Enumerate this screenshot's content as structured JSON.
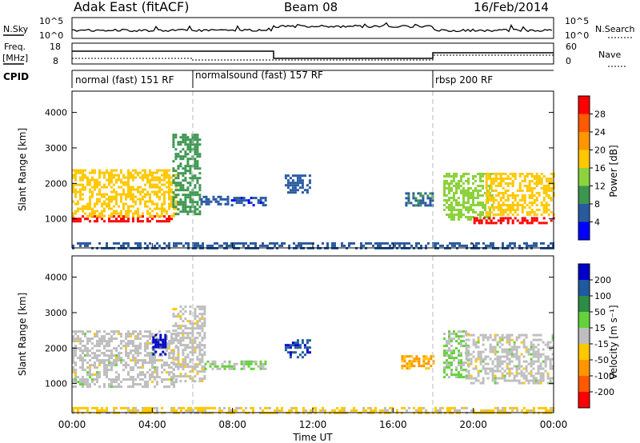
{
  "header": {
    "station": "Adak East (fitACF)",
    "beam": "Beam 08",
    "date": "16/Feb/2014"
  },
  "strips": {
    "nsky_label": "N.Sky",
    "nsearch_label": "N.Search",
    "noise_ticks": [
      "10^5",
      "10^0"
    ],
    "freq_label": "Freq.",
    "freq_unit": "[MHz]",
    "freq_ticks": [
      "18",
      "8"
    ],
    "nave_label": "Nave",
    "nave_ticks": [
      "60",
      "0"
    ],
    "cpid_label": "CPID"
  },
  "cpid_segments": [
    {
      "label": "normal (fast) 151 RF",
      "start_h": 0,
      "end_h": 6
    },
    {
      "label": "normalsound (fast) 157 RF",
      "start_h": 6,
      "end_h": 18
    },
    {
      "label": "rbsp 200 RF",
      "start_h": 18,
      "end_h": 24
    }
  ],
  "axes": {
    "ylabel": "Slant Range [km]",
    "xlabel": "Time UT",
    "x_ticks": [
      "00:00",
      "04:00",
      "08:00",
      "12:00",
      "16:00",
      "20:00",
      "00:00"
    ],
    "y_ticks": [
      "1000",
      "2000",
      "3000",
      "4000"
    ]
  },
  "colorbars": {
    "power": {
      "label": "Power [dB]",
      "ticks": [
        "28",
        "24",
        "20",
        "16",
        "12",
        "8",
        "4"
      ],
      "colors": [
        "#ff0000",
        "#ff5a00",
        "#ff9600",
        "#ffc800",
        "#8cd23c",
        "#3c9650",
        "#285aa0",
        "#0000ff"
      ]
    },
    "velocity": {
      "label": "Velocity [m s⁻¹]",
      "ticks": [
        "200",
        "100",
        "50",
        "15",
        "-15",
        "-50",
        "-100",
        "-200"
      ],
      "colors": [
        "#0000c8",
        "#1e5aa0",
        "#2d8c46",
        "#64d23c",
        "#bebebe",
        "#ffc800",
        "#ff9600",
        "#ff5a00",
        "#ff0000"
      ]
    }
  },
  "chart_data": [
    {
      "type": "heatmap",
      "title": "Power",
      "x_range_hours": [
        0,
        24
      ],
      "y_range_km": [
        180,
        4600
      ],
      "colorbar": "power",
      "clim": [
        0,
        32
      ],
      "regions": [
        {
          "t": [
            0,
            5.0
          ],
          "r": [
            900,
            1100
          ],
          "v": 30
        },
        {
          "t": [
            0,
            5.2
          ],
          "r": [
            1100,
            2400
          ],
          "v": 18
        },
        {
          "t": [
            5.0,
            6.4
          ],
          "r": [
            1100,
            3400
          ],
          "v": 10
        },
        {
          "t": [
            6.4,
            7.8
          ],
          "r": [
            1400,
            1650
          ],
          "v": 6
        },
        {
          "t": [
            7.8,
            9.6
          ],
          "r": [
            1380,
            1620
          ],
          "v": 5
        },
        {
          "t": [
            10.6,
            11.8
          ],
          "r": [
            1750,
            2250
          ],
          "v": 6
        },
        {
          "t": [
            16.6,
            18.0
          ],
          "r": [
            1400,
            1750
          ],
          "v": 7
        },
        {
          "t": [
            18.5,
            21.0
          ],
          "r": [
            1000,
            2300
          ],
          "v": 14
        },
        {
          "t": [
            20.0,
            24
          ],
          "r": [
            850,
            1050
          ],
          "v": 30
        },
        {
          "t": [
            20.6,
            24
          ],
          "r": [
            1100,
            2300
          ],
          "v": 18
        },
        {
          "t": [
            0,
            24
          ],
          "r": [
            180,
            340
          ],
          "v": 6
        }
      ]
    },
    {
      "type": "heatmap",
      "title": "Velocity",
      "x_range_hours": [
        0,
        24
      ],
      "y_range_km": [
        180,
        4600
      ],
      "colorbar": "velocity",
      "clim": [
        -250,
        250
      ],
      "regions": [
        {
          "t": [
            0,
            5.2
          ],
          "r": [
            900,
            2500
          ],
          "v": 0
        },
        {
          "t": [
            5.0,
            6.6
          ],
          "r": [
            1100,
            3200
          ],
          "v": -5
        },
        {
          "t": [
            4.0,
            4.6
          ],
          "r": [
            1800,
            2400
          ],
          "v": 220
        },
        {
          "t": [
            6.6,
            9.6
          ],
          "r": [
            1400,
            1650
          ],
          "v": 25
        },
        {
          "t": [
            10.6,
            11.8
          ],
          "r": [
            1750,
            2250
          ],
          "v": 180
        },
        {
          "t": [
            16.4,
            18.0
          ],
          "r": [
            1400,
            1800
          ],
          "v": -90
        },
        {
          "t": [
            18.5,
            19.8
          ],
          "r": [
            1200,
            2500
          ],
          "v": 30
        },
        {
          "t": [
            19.6,
            24
          ],
          "r": [
            1000,
            2400
          ],
          "v": 0
        },
        {
          "t": [
            0,
            24
          ],
          "r": [
            180,
            340
          ],
          "v": -40
        }
      ]
    }
  ]
}
